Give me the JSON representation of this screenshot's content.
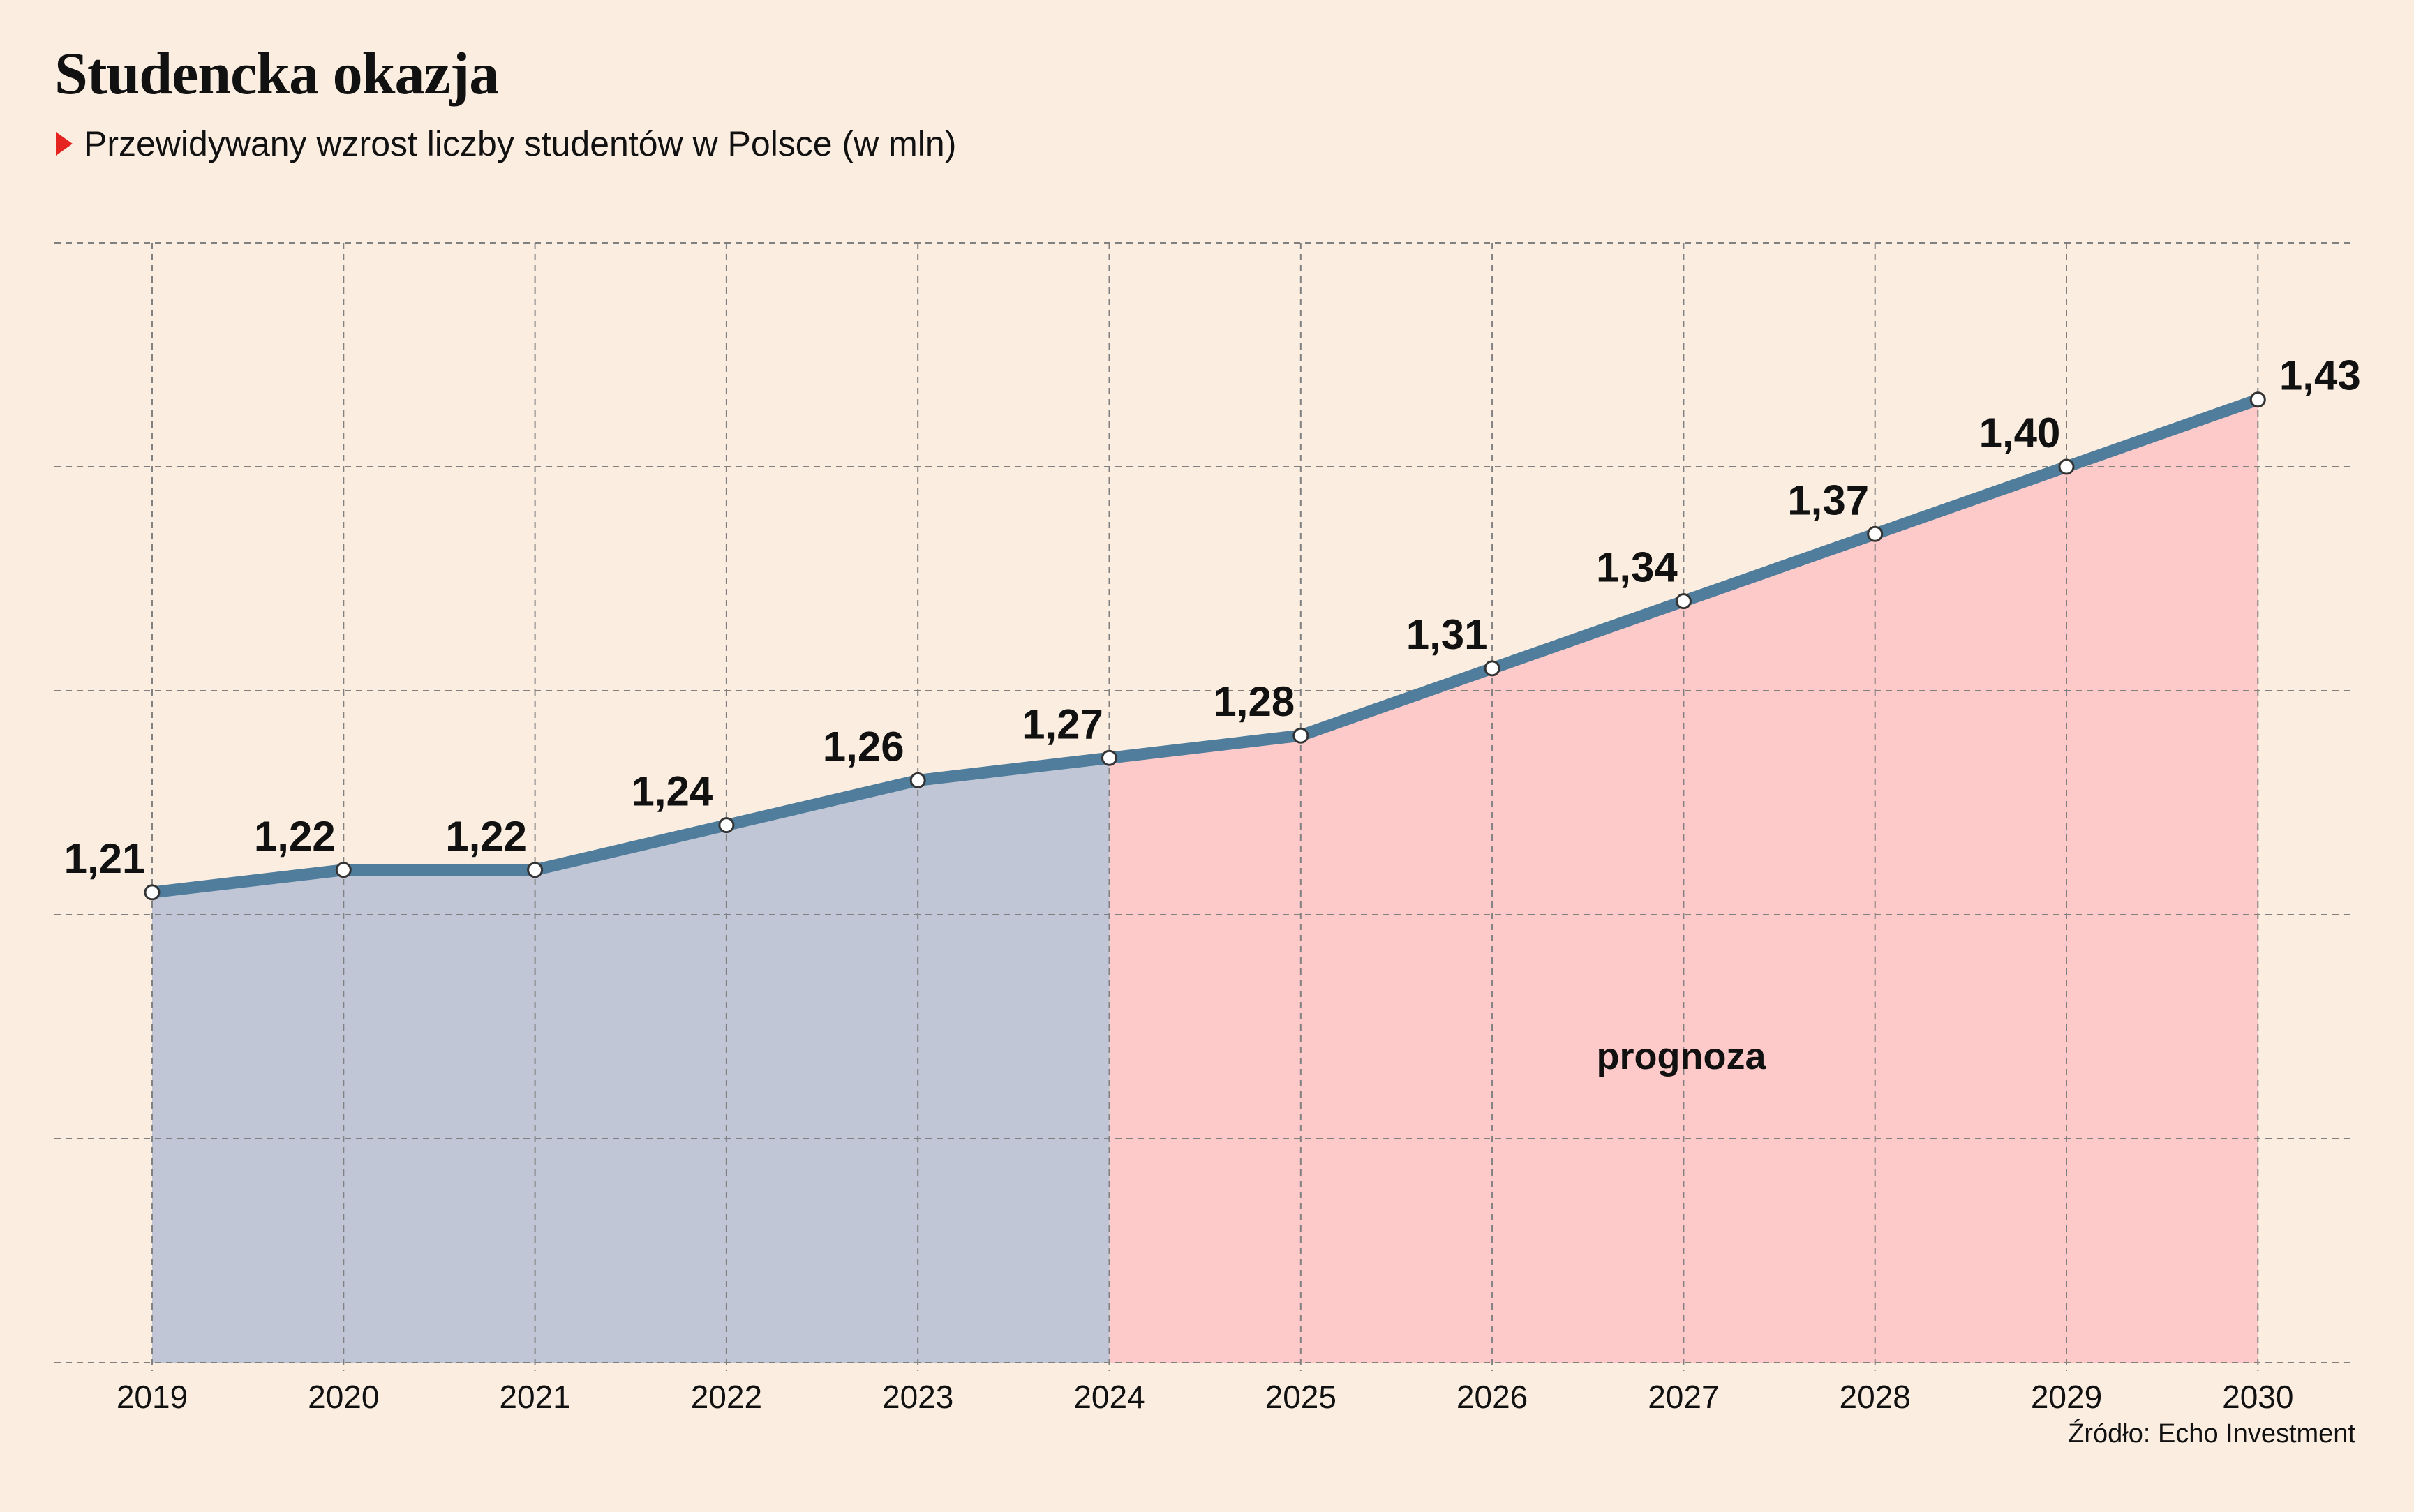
{
  "header": {
    "title": "Studencka okazja",
    "subtitle": "Przewidywany wzrost liczby studentów w Polsce (w mln)",
    "source": "Źródło: Echo Investment"
  },
  "colors": {
    "background": "#fbeee1",
    "line": "#4f7d9b",
    "historical_fill": "#c0c6d5",
    "forecast_fill": "#fec9c9",
    "marker": "#e52420",
    "grid": "#808080"
  },
  "icons": {
    "subtitle_marker": "red-triangle-right-icon"
  },
  "chart_data": {
    "type": "area",
    "title": "Studencka okazja",
    "subtitle": "Przewidywany wzrost liczby studentów w Polsce (w mln)",
    "x": [
      "2019",
      "2020",
      "2021",
      "2022",
      "2023",
      "2024",
      "2025",
      "2026",
      "2027",
      "2028",
      "2029",
      "2030"
    ],
    "values": [
      1.21,
      1.22,
      1.22,
      1.24,
      1.26,
      1.27,
      1.28,
      1.31,
      1.34,
      1.37,
      1.4,
      1.43
    ],
    "value_labels": [
      "1,21",
      "1,22",
      "1,22",
      "1,24",
      "1,26",
      "1,27",
      "1,28",
      "1,31",
      "1,34",
      "1,37",
      "1,40",
      "1,43"
    ],
    "ylim": [
      1.0,
      1.5
    ],
    "y_grid_step": 0.1,
    "xlabel": "",
    "ylabel": "",
    "grid": true,
    "grid_style": "dashed",
    "forecast_from": "2024",
    "forecast_label": "prognoza",
    "source": "Źródło: Echo Investment"
  }
}
